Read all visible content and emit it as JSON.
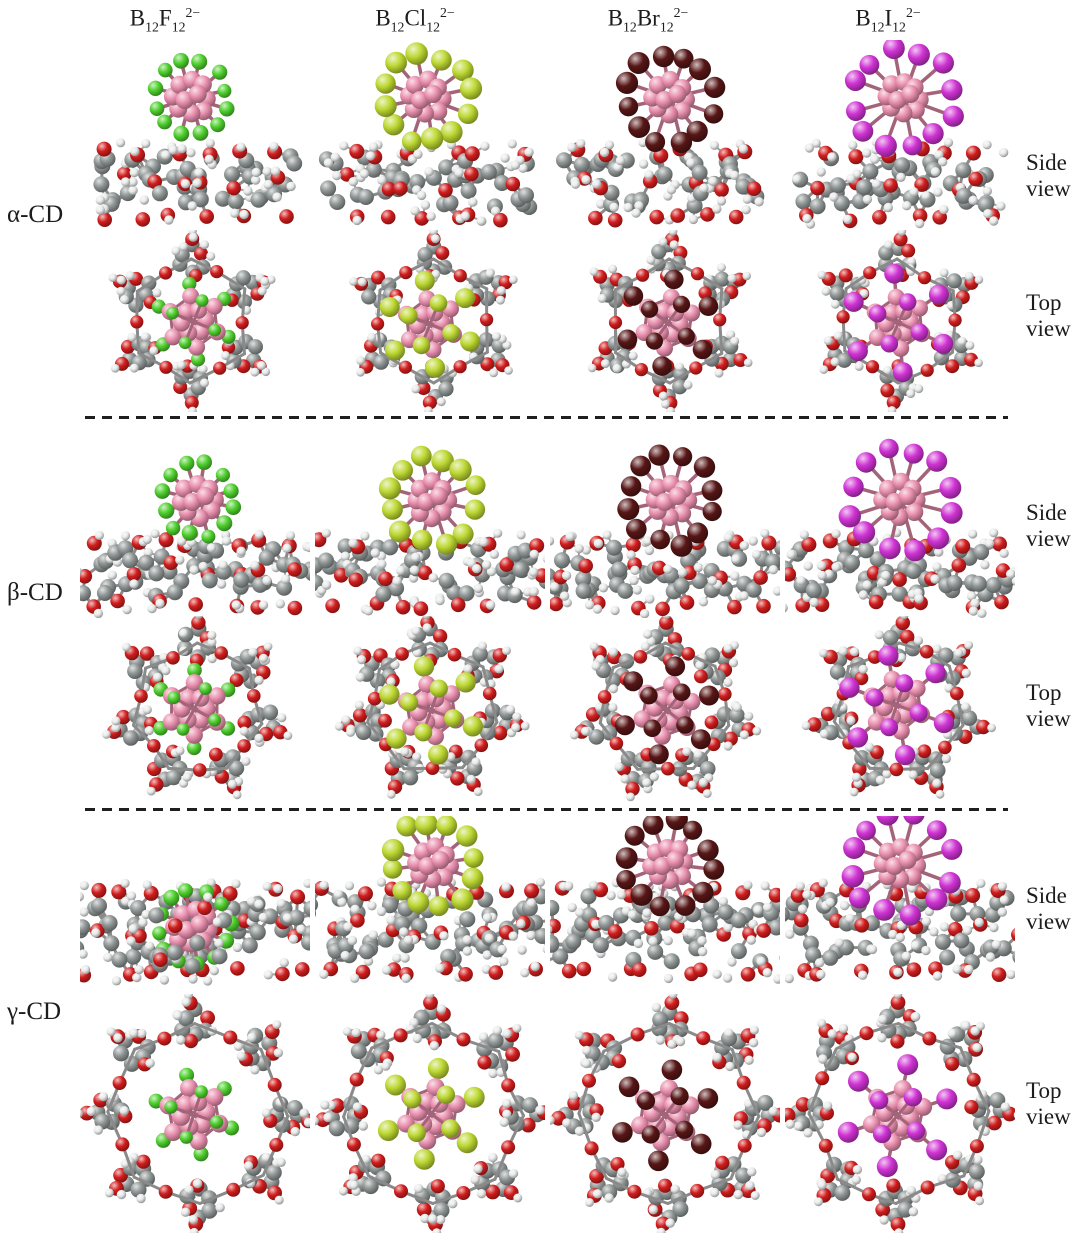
{
  "figure": {
    "columns": [
      {
        "id": "b12f12",
        "formula": {
          "element": "B",
          "element_sub": "12",
          "halogen": "F",
          "halogen_sub": "12",
          "charge": "2−"
        },
        "halogen_name": "fluorine"
      },
      {
        "id": "b12cl12",
        "formula": {
          "element": "B",
          "element_sub": "12",
          "halogen": "Cl",
          "halogen_sub": "12",
          "charge": "2−"
        },
        "halogen_name": "chlorine"
      },
      {
        "id": "b12br12",
        "formula": {
          "element": "B",
          "element_sub": "12",
          "halogen": "Br",
          "halogen_sub": "12",
          "charge": "2−"
        },
        "halogen_name": "bromine"
      },
      {
        "id": "b12i12",
        "formula": {
          "element": "B",
          "element_sub": "12",
          "halogen": "I",
          "halogen_sub": "12",
          "charge": "2−"
        },
        "halogen_name": "iodine"
      }
    ],
    "rows": [
      {
        "id": "alpha-cd",
        "label": "α-CD",
        "glucose_units": 6
      },
      {
        "id": "beta-cd",
        "label": "β-CD",
        "glucose_units": 7
      },
      {
        "id": "gamma-cd",
        "label": "γ-CD",
        "glucose_units": 8
      }
    ],
    "view_labels": {
      "side": "Side view",
      "top": "Top view"
    }
  },
  "colors": {
    "background": "#ffffff",
    "text": "#1c1c1c",
    "separator": "#1f1f1f",
    "bond": "#8a8a8a",
    "bond_hydrogen": "#9e9e9e",
    "atoms": {
      "boron": "#e98fae",
      "fluorine": "#4fcf2e",
      "chlorine": "#bdd832",
      "bromine": "#571616",
      "iodine": "#d033d4",
      "carbon": "#8f9695",
      "oxygen": "#d11d1d",
      "hydrogen": "#e9ebea"
    }
  }
}
